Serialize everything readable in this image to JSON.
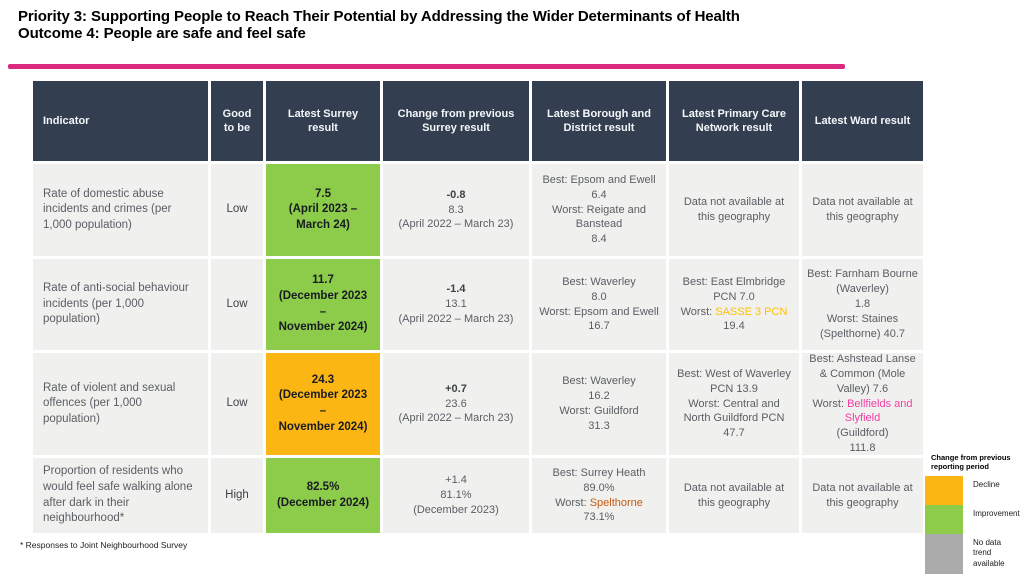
{
  "title": {
    "line1": "Priority 3: Supporting People to Reach Their Potential by Addressing the Wider Determinants of Health",
    "line2": "Outcome 4: People are safe and feel safe"
  },
  "colors": {
    "header_bg": "#333F50",
    "cell_bg": "#F0F0EE",
    "improvement": "#8DCB4A",
    "decline": "#FCB614",
    "no_data": "#ABABAB",
    "accent_rule": "#D92A7F",
    "text_body": "#5A5E64",
    "text_dark": "#3E4248",
    "text_highlight": "#181C22",
    "sasse_yellow": "#FFC000",
    "bellfields_pink": "#EF3FA4",
    "spelthorne_orange": "#C55A11"
  },
  "table": {
    "headers": [
      "Indicator",
      "Good to be",
      "Latest Surrey result",
      "Change from previous Surrey result",
      "Latest Borough and District result",
      "Latest Primary Care Network result",
      "Latest Ward result"
    ],
    "column_keys": [
      "indicator",
      "good_to_be",
      "surrey_result",
      "change",
      "borough_district",
      "pcn",
      "ward"
    ],
    "rows": [
      {
        "indicator": {
          "parts": [
            {
              "text": "Rate of domestic abuse incidents and crimes (per 1,000 population)"
            }
          ]
        },
        "good_to_be": {
          "parts": [
            {
              "text": "Low"
            }
          ]
        },
        "surrey_result": {
          "trend": "improvement",
          "parts": [
            {
              "text": "7.5\n(April 2023 –\nMarch 24)"
            }
          ]
        },
        "change": {
          "parts": [
            {
              "text": "-0.8",
              "bold": true,
              "dark": true
            },
            {
              "text": "\n8.3\n(April 2022 – March 23)"
            }
          ]
        },
        "borough_district": {
          "parts": [
            {
              "text": "Best: Epsom and Ewell\n6.4\nWorst: Reigate and Banstead\n8.4"
            }
          ]
        },
        "pcn": {
          "parts": [
            {
              "text": "Data not available at this geography"
            }
          ]
        },
        "ward": {
          "parts": [
            {
              "text": "Data not available at this geography"
            }
          ]
        }
      },
      {
        "indicator": {
          "parts": [
            {
              "text": "Rate of anti-social behaviour incidents (per 1,000 population)"
            }
          ]
        },
        "good_to_be": {
          "parts": [
            {
              "text": "Low"
            }
          ]
        },
        "surrey_result": {
          "trend": "improvement",
          "parts": [
            {
              "text": "11.7\n(December 2023\n–\nNovember 2024)"
            }
          ]
        },
        "change": {
          "parts": [
            {
              "text": "-1.4",
              "bold": true,
              "dark": true
            },
            {
              "text": "\n13.1\n(April 2022 – March 23)"
            }
          ]
        },
        "borough_district": {
          "parts": [
            {
              "text": "Best: Waverley\n8.0\nWorst: Epsom and Ewell 16.7"
            }
          ]
        },
        "pcn": {
          "parts": [
            {
              "text": "Best: East Elmbridge PCN 7.0\nWorst: "
            },
            {
              "text": "SASSE 3 PCN",
              "color": "#FFC000"
            },
            {
              "text": "\n19.4"
            }
          ]
        },
        "ward": {
          "parts": [
            {
              "text": "Best: Farnham Bourne (Waverley)\n1.8\nWorst: Staines (Spelthorne) 40.7"
            }
          ]
        }
      },
      {
        "indicator": {
          "parts": [
            {
              "text": "Rate of violent and sexual offences (per 1,000 population)"
            }
          ]
        },
        "good_to_be": {
          "parts": [
            {
              "text": "Low"
            }
          ]
        },
        "surrey_result": {
          "trend": "decline",
          "parts": [
            {
              "text": "24.3\n(December 2023\n–\nNovember 2024)"
            }
          ]
        },
        "change": {
          "parts": [
            {
              "text": "+0.7",
              "bold": true,
              "dark": true
            },
            {
              "text": "\n23.6\n(April 2022 – March 23)"
            }
          ]
        },
        "borough_district": {
          "parts": [
            {
              "text": "Best: Waverley\n16.2\nWorst: Guildford\n31.3"
            }
          ]
        },
        "pcn": {
          "parts": [
            {
              "text": "Best: West of Waverley PCN 13.9\nWorst: Central and North Guildford PCN\n47.7"
            }
          ]
        },
        "ward": {
          "parts": [
            {
              "text": "Best: Ashstead Lanse & Common (Mole Valley) 7.6\nWorst: "
            },
            {
              "text": "Bellfields and Slyfield",
              "color": "#EF3FA4"
            },
            {
              "text": "\n(Guildford)\n111.8"
            }
          ]
        }
      },
      {
        "indicator": {
          "parts": [
            {
              "text": "Proportion of residents who would feel safe walking alone after dark in their neighbourhood*"
            }
          ]
        },
        "good_to_be": {
          "parts": [
            {
              "text": "High"
            }
          ]
        },
        "surrey_result": {
          "trend": "improvement",
          "parts": [
            {
              "text": "82.5%\n(December 2024)"
            }
          ]
        },
        "change": {
          "parts": [
            {
              "text": "+1.4\n81.1%\n(December 2023)"
            }
          ]
        },
        "borough_district": {
          "parts": [
            {
              "text": "Best: Surrey Heath\n89.0%\nWorst: "
            },
            {
              "text": "Spelthorne",
              "color": "#C55A11"
            },
            {
              "text": "\n73.1%"
            }
          ]
        },
        "pcn": {
          "parts": [
            {
              "text": "Data not available at this geography"
            }
          ]
        },
        "ward": {
          "parts": [
            {
              "text": "Data not available at this geography"
            }
          ]
        }
      }
    ]
  },
  "legend": {
    "title": "Change from previous reporting period",
    "items": [
      {
        "label": "Decline",
        "color": "#FCB614"
      },
      {
        "label": "Improvement",
        "color": "#8DCB4A"
      },
      {
        "label": "No data trend available",
        "color": "#ABABAB"
      }
    ]
  },
  "footnote": "* Responses to Joint Neighbourhood Survey"
}
